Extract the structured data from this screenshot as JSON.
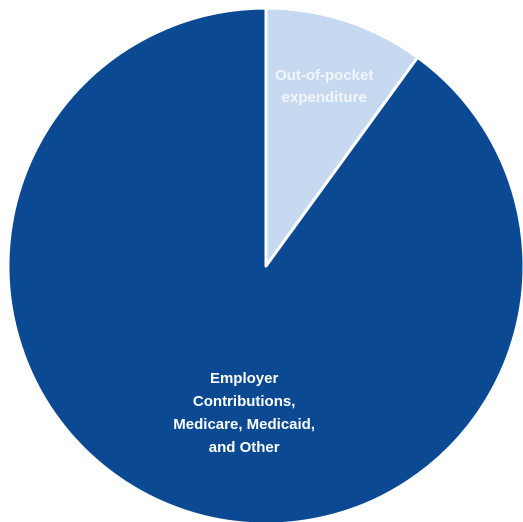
{
  "chart_data": {
    "type": "pie",
    "categories": [
      "Out-of-pocket expenditure",
      "Employer Contributions, Medicare, Medicaid, and Other"
    ],
    "values": [
      10,
      90
    ],
    "colors": [
      "#c6d9f0",
      "#0b4a93"
    ],
    "label_colors": [
      "#f2f6fb",
      "#ffffff"
    ]
  }
}
